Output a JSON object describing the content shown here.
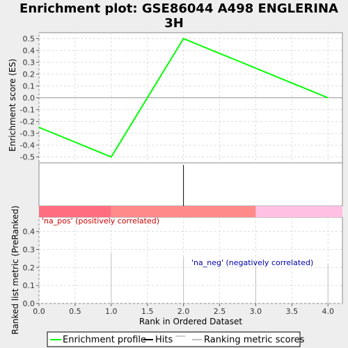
{
  "chart_data": {
    "type": "line",
    "title": "Enrichment plot: GSE86044 A498 ENGLERINA 3H",
    "xlabel": "Rank in Ordered Dataset",
    "xlim": [
      0,
      4.2
    ],
    "x_ticks": [
      0,
      0.5,
      1.0,
      1.5,
      2.0,
      2.5,
      3.0,
      3.5,
      4.0
    ],
    "x_tick_labels": [
      "0.0",
      "0.5",
      "1.0",
      "1.5",
      "2.0",
      "2.5",
      "3.0",
      "3.5",
      "4.0"
    ],
    "panels": {
      "enrichment": {
        "ylabel": "Enrichment score (ES)",
        "ylim": [
          -0.55,
          0.55
        ],
        "y_ticks": [
          0.5,
          0.4,
          0.3,
          0.2,
          0.1,
          0.0,
          -0.1,
          -0.2,
          -0.3,
          -0.4,
          -0.5
        ],
        "y_tick_labels": [
          "0.5",
          "0.4",
          "0.3",
          "0.2",
          "0.1",
          "0.0",
          "-0.1",
          "-0.2",
          "-0.3",
          "-0.4",
          "-0.5"
        ],
        "series": [
          {
            "name": "Enrichment profile",
            "color": "#00ff00",
            "x": [
              0,
              1,
              2,
              4
            ],
            "y": [
              -0.25,
              -0.5,
              0.5,
              0.0
            ]
          }
        ],
        "grid": true
      },
      "hits": {
        "color": "#000000",
        "x": [
          2
        ]
      },
      "colorbar": {
        "segments": [
          {
            "from": 0,
            "to": 1,
            "color": "#ff6e80"
          },
          {
            "from": 1,
            "to": 3,
            "color": "#ff8a8a"
          },
          {
            "from": 3,
            "to": 4.2,
            "color": "#ffc0e4"
          }
        ]
      },
      "ranked": {
        "ylabel": "Ranked list metric (PreRanked)",
        "ylim": [
          0,
          0.48
        ],
        "y_ticks": [
          0.0,
          0.1,
          0.2,
          0.3,
          0.4
        ],
        "y_tick_labels": [
          "0.0",
          "0.1",
          "0.2",
          "0.3",
          "0.4"
        ],
        "bars": {
          "x": [
            1,
            2,
            3,
            4
          ],
          "values": [
            0.28,
            0.26,
            0.24,
            0.22
          ],
          "color": "#c0c0c0"
        },
        "annotations": [
          {
            "text": "'na_pos' (positively correlated)",
            "color": "#cc0000"
          },
          {
            "text": "'na_neg' (negatively correlated)",
            "color": "#0000aa"
          }
        ],
        "grid": true
      }
    },
    "legend": {
      "placement": "bottom",
      "entries": [
        {
          "label": "Enrichment profile",
          "color": "#00ff00"
        },
        {
          "label": "Hits",
          "color": "#000000"
        },
        {
          "label": "Ranking metric scores",
          "color": "#c0c0c0"
        }
      ]
    }
  }
}
